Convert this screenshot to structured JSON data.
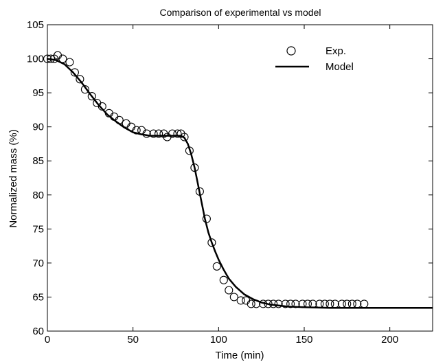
{
  "chart_data": {
    "type": "scatter",
    "title": "Comparison of experimental vs model",
    "xlabel": "Time (min)",
    "ylabel": "Normalized mass (%)",
    "xlim": [
      0,
      225
    ],
    "ylim": [
      60,
      105
    ],
    "xticks": [
      0,
      50,
      100,
      150,
      200
    ],
    "yticks": [
      60,
      65,
      70,
      75,
      80,
      85,
      90,
      95,
      100,
      105
    ],
    "grid": false,
    "legend_position": "top-right",
    "series": [
      {
        "name": "Exp.",
        "style": "open-circle",
        "color": "#000000",
        "x": [
          0,
          2,
          4,
          6,
          9,
          13,
          16,
          19,
          22,
          26,
          29,
          32,
          36,
          39,
          42,
          46,
          49,
          52,
          55,
          58,
          62,
          65,
          68,
          70,
          73,
          76,
          78,
          80,
          83,
          86,
          89,
          93,
          96,
          99,
          103,
          106,
          109,
          113,
          116,
          119,
          122,
          126,
          129,
          132,
          135,
          139,
          142,
          145,
          149,
          152,
          155,
          159,
          162,
          165,
          168,
          172,
          175,
          178,
          181,
          185
        ],
        "y": [
          100,
          100,
          100,
          100.5,
          100,
          99.5,
          98,
          97,
          95.5,
          94.5,
          93.5,
          93,
          92,
          91.5,
          91,
          90.5,
          90,
          89.5,
          89.5,
          89,
          89,
          89,
          89,
          88.5,
          89,
          89,
          89,
          88.5,
          86.5,
          84,
          80.5,
          76.5,
          73,
          69.5,
          67.5,
          66,
          65,
          64.5,
          64.5,
          64,
          64,
          64,
          64,
          64,
          64,
          64,
          64,
          64,
          64,
          64,
          64,
          64,
          64,
          64,
          64,
          64,
          64,
          64,
          64,
          64
        ]
      },
      {
        "name": "Model",
        "style": "line",
        "color": "#000000",
        "x": [
          0,
          5,
          10,
          15,
          20,
          25,
          30,
          35,
          40,
          45,
          50,
          55,
          60,
          65,
          70,
          75,
          78,
          80,
          82,
          84,
          86,
          88,
          90,
          92,
          94,
          96,
          98,
          100,
          103,
          106,
          110,
          115,
          120,
          125,
          130,
          140,
          150,
          165,
          180,
          200,
          225
        ],
        "y": [
          100,
          99.8,
          99.2,
          98,
          96.5,
          94.8,
          93.2,
          91.8,
          90.8,
          89.9,
          89.2,
          88.9,
          88.7,
          88.7,
          88.7,
          88.7,
          88.7,
          88.4,
          87.5,
          86,
          84,
          81.5,
          79,
          76.5,
          74.5,
          73,
          71.7,
          70.5,
          69,
          67.7,
          66.5,
          65.4,
          64.7,
          64.2,
          63.9,
          63.6,
          63.5,
          63.4,
          63.4,
          63.4,
          63.4
        ]
      }
    ]
  }
}
